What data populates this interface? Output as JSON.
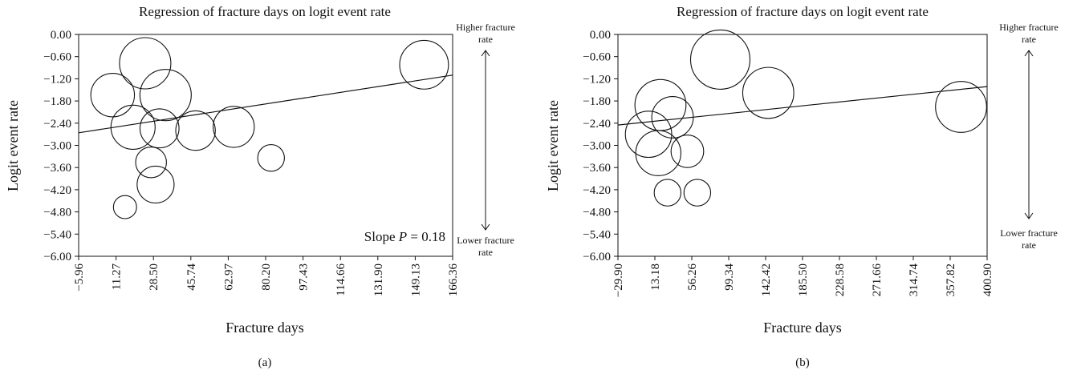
{
  "chart_data": [
    {
      "type": "scatter",
      "panel": "(a)",
      "title": "Regression of fracture days on logit event rate",
      "xlabel": "Fracture days",
      "ylabel": "Logit event rate",
      "xlim": [
        -5.96,
        166.36
      ],
      "ylim": [
        -6.0,
        0.0
      ],
      "x_ticks": [
        "−5.96",
        "11.27",
        "28.50",
        "45.74",
        "62.97",
        "80.20",
        "97.43",
        "114.66",
        "131.90",
        "149.13",
        "166.36"
      ],
      "y_ticks": [
        "0.00",
        "−0.60",
        "−1.20",
        "−1.80",
        "−2.40",
        "−3.00",
        "−3.60",
        "−4.20",
        "−4.80",
        "−5.40",
        "−6.00"
      ],
      "regression_line": {
        "x": [
          -5.96,
          166.36
        ],
        "y": [
          -2.66,
          -1.1
        ]
      },
      "annotation": {
        "prefix": "Slope ",
        "italic": "P",
        "suffix": " = 0.18"
      },
      "arrow_labels": {
        "top_line1": "Higher fracture",
        "top_line2": "rate",
        "bottom_line1": "Lower fracture",
        "bottom_line2": "rate"
      },
      "points": [
        {
          "x": 24.7,
          "y": -0.78,
          "weight": 1.0
        },
        {
          "x": 153.2,
          "y": -0.82,
          "weight": 0.95
        },
        {
          "x": 9.7,
          "y": -1.64,
          "weight": 0.85
        },
        {
          "x": 34.1,
          "y": -1.64,
          "weight": 1.0
        },
        {
          "x": 19.1,
          "y": -2.51,
          "weight": 0.86
        },
        {
          "x": 31.3,
          "y": -2.54,
          "weight": 0.76
        },
        {
          "x": 47.9,
          "y": -2.6,
          "weight": 0.77
        },
        {
          "x": 65.5,
          "y": -2.5,
          "weight": 0.8
        },
        {
          "x": 27.4,
          "y": -3.46,
          "weight": 0.6
        },
        {
          "x": 29.5,
          "y": -4.06,
          "weight": 0.72
        },
        {
          "x": 82.7,
          "y": -3.34,
          "weight": 0.52
        },
        {
          "x": 15.4,
          "y": -4.67,
          "weight": 0.45
        }
      ]
    },
    {
      "type": "scatter",
      "panel": "(b)",
      "title": "Regression of fracture days on logit event rate",
      "xlabel": "Fracture days",
      "ylabel": "Logit event rate",
      "xlim": [
        -29.9,
        400.9
      ],
      "ylim": [
        -6.0,
        0.0
      ],
      "x_ticks": [
        "−29.90",
        "13.18",
        "56.26",
        "99.34",
        "142.42",
        "185.50",
        "228.58",
        "271.66",
        "314.74",
        "357.82",
        "400.90"
      ],
      "y_ticks": [
        "0.00",
        "−0.60",
        "−1.20",
        "−1.80",
        "−2.40",
        "−3.00",
        "−3.60",
        "−4.20",
        "−4.80",
        "−5.40",
        "−6.00"
      ],
      "regression_line": {
        "x": [
          -29.9,
          400.9
        ],
        "y": [
          -2.45,
          -1.41
        ]
      },
      "annotation": null,
      "arrow_labels": {
        "top_line1": "Higher fracture",
        "top_line2": "rate",
        "bottom_line1": "Lower fracture",
        "bottom_line2": "rate"
      },
      "points": [
        {
          "x": 89.5,
          "y": -0.68,
          "weight": 1.0
        },
        {
          "x": 145.5,
          "y": -1.58,
          "weight": 0.86
        },
        {
          "x": 19.7,
          "y": -1.91,
          "weight": 0.86
        },
        {
          "x": 33.8,
          "y": -2.24,
          "weight": 0.7
        },
        {
          "x": 5.8,
          "y": -2.7,
          "weight": 0.78
        },
        {
          "x": 17.2,
          "y": -3.21,
          "weight": 0.76
        },
        {
          "x": 51.1,
          "y": -3.16,
          "weight": 0.55
        },
        {
          "x": 28.0,
          "y": -4.28,
          "weight": 0.45
        },
        {
          "x": 62.7,
          "y": -4.28,
          "weight": 0.45
        },
        {
          "x": 370.5,
          "y": -1.96,
          "weight": 0.86
        }
      ]
    }
  ]
}
